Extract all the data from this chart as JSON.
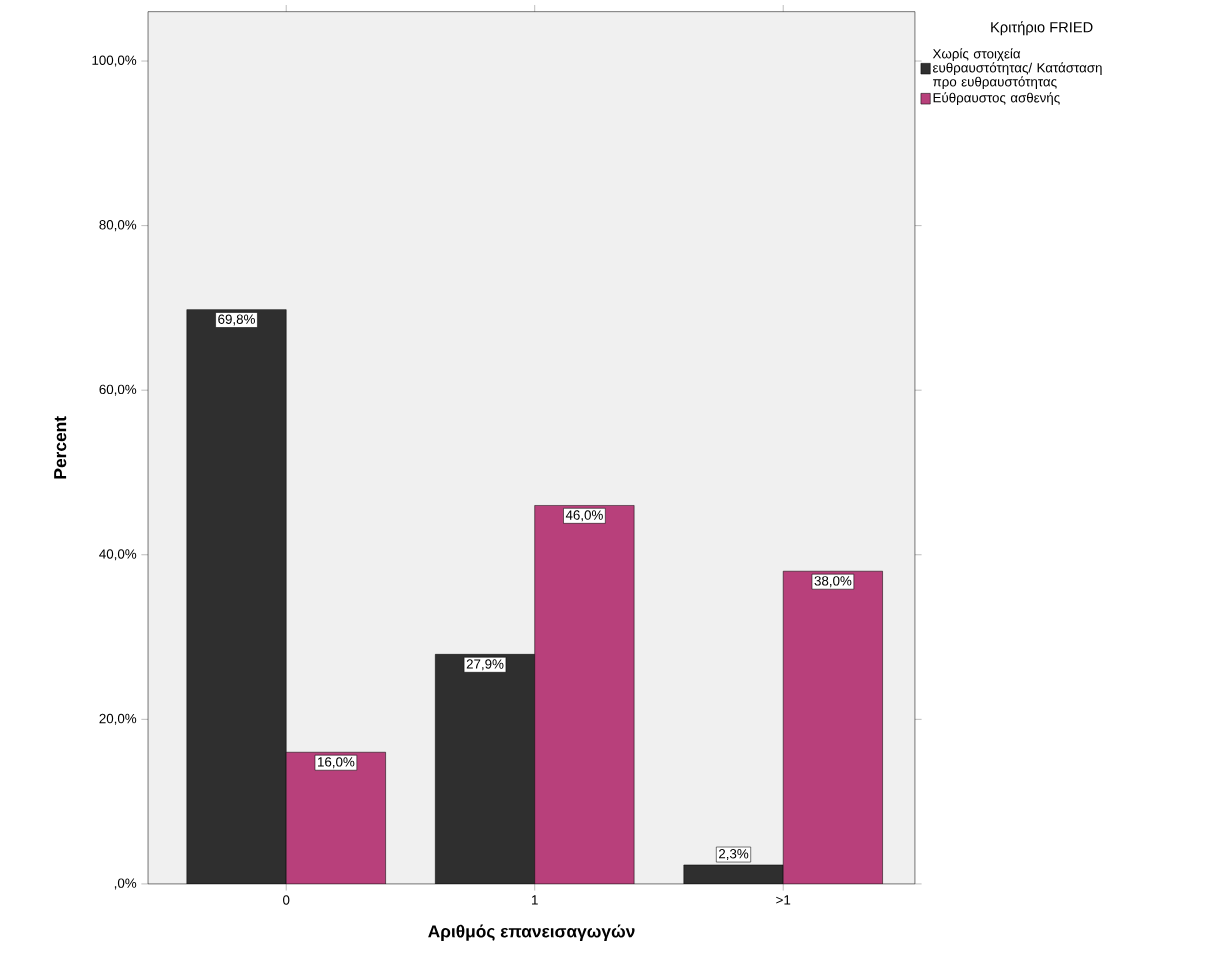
{
  "chart_data": {
    "type": "bar",
    "xlabel": "Αριθμός επανεισαγωγών",
    "ylabel": "Percent",
    "legend_title": "Κριτήριο FRIED",
    "legend": "top right",
    "categories": [
      "0",
      "1",
      ">1"
    ],
    "series": [
      {
        "name": "Χωρίς στοιχεία ευθραυστότητας/ Κατάσταση προ ευθραυστότητας",
        "color": "#2f2f2f",
        "values": [
          69.8,
          27.9,
          2.3
        ],
        "value_labels": [
          "69,8%",
          "27,9%",
          "2,3%"
        ]
      },
      {
        "name": "Εύθραυστος ασθενής",
        "color": "#b8407b",
        "values": [
          16.0,
          46.0,
          38.0
        ],
        "value_labels": [
          "16,0%",
          "46,0%",
          "38,0%"
        ]
      }
    ],
    "ylim": [
      0,
      106
    ],
    "yticks": [
      {
        "value": 0,
        "label": ",0%"
      },
      {
        "value": 20,
        "label": "20,0%"
      },
      {
        "value": 40,
        "label": "40,0%"
      },
      {
        "value": 60,
        "label": "60,0%"
      },
      {
        "value": 80,
        "label": "80,0%"
      },
      {
        "value": 100,
        "label": "100,0%"
      }
    ]
  }
}
